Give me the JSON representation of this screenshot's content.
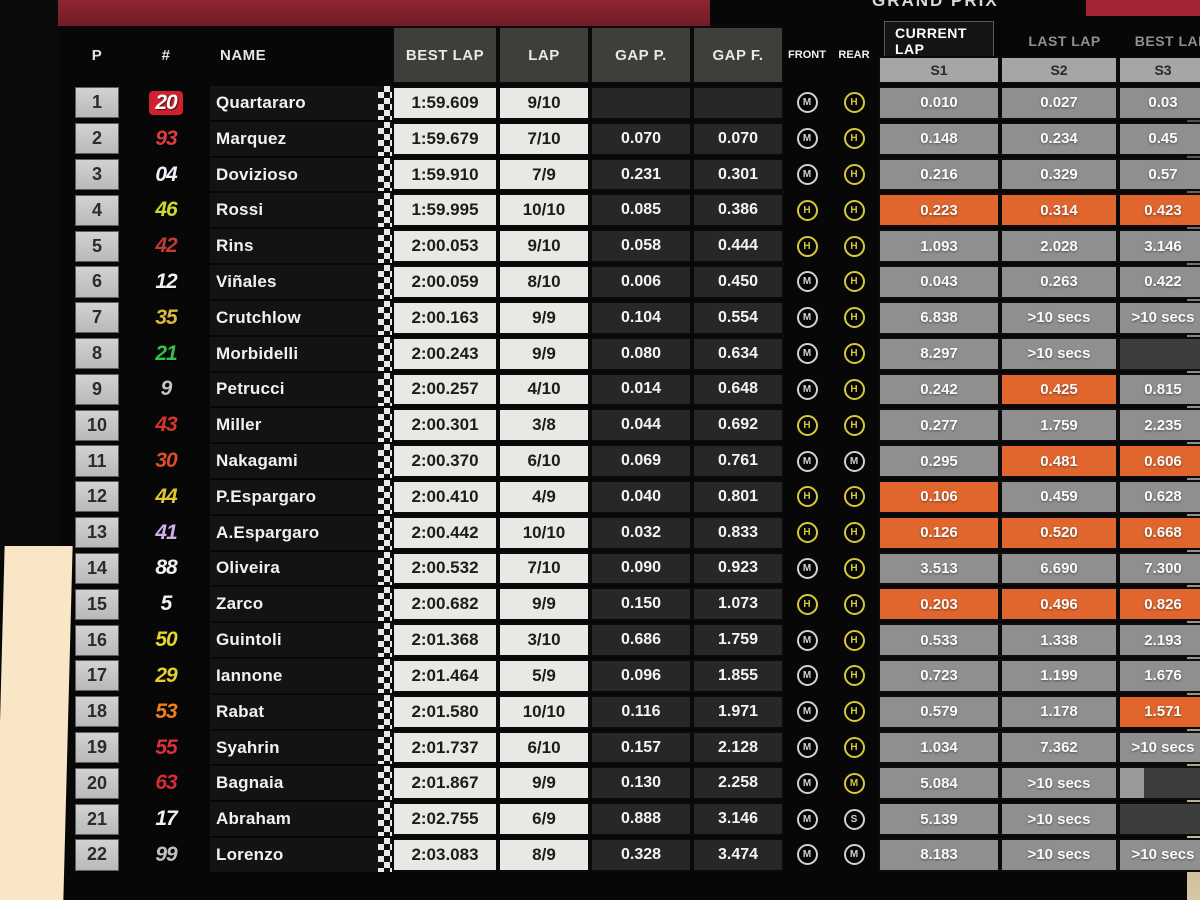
{
  "header": {
    "top_right_text": "GRAND PRIX",
    "columns": {
      "p": "P",
      "num": "#",
      "name": "NAME",
      "best": "BEST LAP",
      "lap": "LAP",
      "gap_p": "GAP P.",
      "gap_f": "GAP F.",
      "front": "FRONT",
      "rear": "REAR"
    },
    "tabs": {
      "current": "CURRENT LAP",
      "last": "LAST LAP",
      "best": "BEST LAP"
    },
    "sectors": [
      "S1",
      "S2",
      "S3"
    ]
  },
  "colors": {
    "orange_highlight": "#e0662e",
    "maroon_banner": "#8e2532",
    "tire_silver": "#cfd2d6",
    "tire_yellow": "#d9c93a"
  },
  "rows": [
    {
      "p": 1,
      "num": "20",
      "num_color": "#ffffff",
      "num_bg": "#d1212e",
      "name": "Quartararo",
      "best": "1:59.609",
      "lap": "9/10",
      "gap_p": "",
      "gap_f": "",
      "front": {
        "c": "M",
        "ring": "silver"
      },
      "rear": {
        "c": "H",
        "ring": "yellow"
      },
      "s1": {
        "v": "0.010",
        "t": "grey"
      },
      "s2": {
        "v": "0.027",
        "t": "grey"
      },
      "s3": {
        "v": "0.03",
        "t": "grey"
      }
    },
    {
      "p": 2,
      "num": "93",
      "num_color": "#e03a3a",
      "name": "Marquez",
      "best": "1:59.679",
      "lap": "7/10",
      "gap_p": "0.070",
      "gap_f": "0.070",
      "front": {
        "c": "M",
        "ring": "silver"
      },
      "rear": {
        "c": "H",
        "ring": "yellow"
      },
      "s1": {
        "v": "0.148",
        "t": "grey"
      },
      "s2": {
        "v": "0.234",
        "t": "grey"
      },
      "s3": {
        "v": "0.45",
        "t": "grey"
      }
    },
    {
      "p": 3,
      "num": "04",
      "num_color": "#eef0fa",
      "name": "Dovizioso",
      "best": "1:59.910",
      "lap": "7/9",
      "gap_p": "0.231",
      "gap_f": "0.301",
      "front": {
        "c": "M",
        "ring": "silver"
      },
      "rear": {
        "c": "H",
        "ring": "yellow"
      },
      "s1": {
        "v": "0.216",
        "t": "grey"
      },
      "s2": {
        "v": "0.329",
        "t": "grey"
      },
      "s3": {
        "v": "0.57",
        "t": "grey"
      }
    },
    {
      "p": 4,
      "num": "46",
      "num_color": "#c9dc2e",
      "name": "Rossi",
      "best": "1:59.995",
      "lap": "10/10",
      "gap_p": "0.085",
      "gap_f": "0.386",
      "front": {
        "c": "H",
        "ring": "yellow"
      },
      "rear": {
        "c": "H",
        "ring": "yellow"
      },
      "s1": {
        "v": "0.223",
        "t": "orange"
      },
      "s2": {
        "v": "0.314",
        "t": "orange"
      },
      "s3": {
        "v": "0.423",
        "t": "orange"
      }
    },
    {
      "p": 5,
      "num": "42",
      "num_color": "#bf3c34",
      "name": "Rins",
      "best": "2:00.053",
      "lap": "9/10",
      "gap_p": "0.058",
      "gap_f": "0.444",
      "front": {
        "c": "H",
        "ring": "yellow"
      },
      "rear": {
        "c": "H",
        "ring": "yellow"
      },
      "s1": {
        "v": "1.093",
        "t": "grey"
      },
      "s2": {
        "v": "2.028",
        "t": "grey"
      },
      "s3": {
        "v": "3.146",
        "t": "grey"
      }
    },
    {
      "p": 6,
      "num": "12",
      "num_color": "#f2f2f2",
      "name": "Viñales",
      "best": "2:00.059",
      "lap": "8/10",
      "gap_p": "0.006",
      "gap_f": "0.450",
      "front": {
        "c": "M",
        "ring": "silver"
      },
      "rear": {
        "c": "H",
        "ring": "yellow"
      },
      "s1": {
        "v": "0.043",
        "t": "grey"
      },
      "s2": {
        "v": "0.263",
        "t": "grey"
      },
      "s3": {
        "v": "0.422",
        "t": "grey"
      }
    },
    {
      "p": 7,
      "num": "35",
      "num_color": "#dcb93a",
      "name": "Crutchlow",
      "best": "2:00.163",
      "lap": "9/9",
      "gap_p": "0.104",
      "gap_f": "0.554",
      "front": {
        "c": "M",
        "ring": "silver"
      },
      "rear": {
        "c": "H",
        "ring": "yellow"
      },
      "s1": {
        "v": "6.838",
        "t": "grey"
      },
      "s2": {
        "v": ">10 secs",
        "t": "grey"
      },
      "s3": {
        "v": ">10 secs",
        "t": "grey"
      }
    },
    {
      "p": 8,
      "num": "21",
      "num_color": "#38c04a",
      "name": "Morbidelli",
      "best": "2:00.243",
      "lap": "9/9",
      "gap_p": "0.080",
      "gap_f": "0.634",
      "front": {
        "c": "M",
        "ring": "silver"
      },
      "rear": {
        "c": "H",
        "ring": "yellow"
      },
      "s1": {
        "v": "8.297",
        "t": "grey"
      },
      "s2": {
        "v": ">10 secs",
        "t": "grey"
      },
      "s3": {
        "v": "",
        "t": "blank"
      }
    },
    {
      "p": 9,
      "num": "9",
      "num_color": "#c3c3ca",
      "name": "Petrucci",
      "best": "2:00.257",
      "lap": "4/10",
      "gap_p": "0.014",
      "gap_f": "0.648",
      "front": {
        "c": "M",
        "ring": "silver"
      },
      "rear": {
        "c": "H",
        "ring": "yellow"
      },
      "s1": {
        "v": "0.242",
        "t": "grey"
      },
      "s2": {
        "v": "0.425",
        "t": "orange"
      },
      "s3": {
        "v": "0.815",
        "t": "grey"
      }
    },
    {
      "p": 10,
      "num": "43",
      "num_color": "#d8352a",
      "name": "Miller",
      "best": "2:00.301",
      "lap": "3/8",
      "gap_p": "0.044",
      "gap_f": "0.692",
      "front": {
        "c": "H",
        "ring": "yellow"
      },
      "rear": {
        "c": "H",
        "ring": "yellow"
      },
      "s1": {
        "v": "0.277",
        "t": "grey"
      },
      "s2": {
        "v": "1.759",
        "t": "grey"
      },
      "s3": {
        "v": "2.235",
        "t": "grey"
      }
    },
    {
      "p": 11,
      "num": "30",
      "num_color": "#e04b2a",
      "name": "Nakagami",
      "best": "2:00.370",
      "lap": "6/10",
      "gap_p": "0.069",
      "gap_f": "0.761",
      "front": {
        "c": "M",
        "ring": "silver"
      },
      "rear": {
        "c": "M",
        "ring": "silver"
      },
      "s1": {
        "v": "0.295",
        "t": "grey"
      },
      "s2": {
        "v": "0.481",
        "t": "orange"
      },
      "s3": {
        "v": "0.606",
        "t": "orange"
      }
    },
    {
      "p": 12,
      "num": "44",
      "num_color": "#e2c62f",
      "name": "P.Espargaro",
      "best": "2:00.410",
      "lap": "4/9",
      "gap_p": "0.040",
      "gap_f": "0.801",
      "front": {
        "c": "H",
        "ring": "yellow"
      },
      "rear": {
        "c": "H",
        "ring": "yellow"
      },
      "s1": {
        "v": "0.106",
        "t": "orange"
      },
      "s2": {
        "v": "0.459",
        "t": "grey"
      },
      "s3": {
        "v": "0.628",
        "t": "grey"
      }
    },
    {
      "p": 13,
      "num": "41",
      "num_color": "#cfb0ec",
      "name": "A.Espargaro",
      "best": "2:00.442",
      "lap": "10/10",
      "gap_p": "0.032",
      "gap_f": "0.833",
      "front": {
        "c": "H",
        "ring": "yellow"
      },
      "rear": {
        "c": "H",
        "ring": "yellow"
      },
      "s1": {
        "v": "0.126",
        "t": "orange"
      },
      "s2": {
        "v": "0.520",
        "t": "orange"
      },
      "s3": {
        "v": "0.668",
        "t": "orange"
      }
    },
    {
      "p": 14,
      "num": "88",
      "num_color": "#f1f1f1",
      "name": "Oliveira",
      "best": "2:00.532",
      "lap": "7/10",
      "gap_p": "0.090",
      "gap_f": "0.923",
      "front": {
        "c": "M",
        "ring": "silver"
      },
      "rear": {
        "c": "H",
        "ring": "yellow"
      },
      "s1": {
        "v": "3.513",
        "t": "grey"
      },
      "s2": {
        "v": "6.690",
        "t": "grey"
      },
      "s3": {
        "v": "7.300",
        "t": "grey"
      }
    },
    {
      "p": 15,
      "num": "5",
      "num_color": "#f3f3f3",
      "name": "Zarco",
      "best": "2:00.682",
      "lap": "9/9",
      "gap_p": "0.150",
      "gap_f": "1.073",
      "front": {
        "c": "H",
        "ring": "yellow"
      },
      "rear": {
        "c": "H",
        "ring": "yellow"
      },
      "s1": {
        "v": "0.203",
        "t": "orange"
      },
      "s2": {
        "v": "0.496",
        "t": "orange"
      },
      "s3": {
        "v": "0.826",
        "t": "orange"
      }
    },
    {
      "p": 16,
      "num": "50",
      "num_color": "#e6d42f",
      "name": "Guintoli",
      "best": "2:01.368",
      "lap": "3/10",
      "gap_p": "0.686",
      "gap_f": "1.759",
      "front": {
        "c": "M",
        "ring": "silver"
      },
      "rear": {
        "c": "H",
        "ring": "yellow"
      },
      "s1": {
        "v": "0.533",
        "t": "grey"
      },
      "s2": {
        "v": "1.338",
        "t": "grey"
      },
      "s3": {
        "v": "2.193",
        "t": "grey"
      }
    },
    {
      "p": 17,
      "num": "29",
      "num_color": "#e3ce2f",
      "name": "Iannone",
      "best": "2:01.464",
      "lap": "5/9",
      "gap_p": "0.096",
      "gap_f": "1.855",
      "front": {
        "c": "M",
        "ring": "silver"
      },
      "rear": {
        "c": "H",
        "ring": "yellow"
      },
      "s1": {
        "v": "0.723",
        "t": "grey"
      },
      "s2": {
        "v": "1.199",
        "t": "grey"
      },
      "s3": {
        "v": "1.676",
        "t": "grey"
      }
    },
    {
      "p": 18,
      "num": "53",
      "num_color": "#ef7e1d",
      "name": "Rabat",
      "best": "2:01.580",
      "lap": "10/10",
      "gap_p": "0.116",
      "gap_f": "1.971",
      "front": {
        "c": "M",
        "ring": "silver"
      },
      "rear": {
        "c": "H",
        "ring": "yellow"
      },
      "s1": {
        "v": "0.579",
        "t": "grey"
      },
      "s2": {
        "v": "1.178",
        "t": "grey"
      },
      "s3": {
        "v": "1.571",
        "t": "orange"
      }
    },
    {
      "p": 19,
      "num": "55",
      "num_color": "#d8333d",
      "name": "Syahrin",
      "best": "2:01.737",
      "lap": "6/10",
      "gap_p": "0.157",
      "gap_f": "2.128",
      "front": {
        "c": "M",
        "ring": "silver"
      },
      "rear": {
        "c": "H",
        "ring": "yellow"
      },
      "s1": {
        "v": "1.034",
        "t": "grey"
      },
      "s2": {
        "v": "7.362",
        "t": "grey"
      },
      "s3": {
        "v": ">10 secs",
        "t": "grey"
      }
    },
    {
      "p": 20,
      "num": "63",
      "num_color": "#d62b35",
      "name": "Bagnaia",
      "best": "2:01.867",
      "lap": "9/9",
      "gap_p": "0.130",
      "gap_f": "2.258",
      "front": {
        "c": "M",
        "ring": "silver"
      },
      "rear": {
        "c": "M",
        "ring": "yellow"
      },
      "s1": {
        "v": "5.084",
        "t": "grey"
      },
      "s2": {
        "v": ">10 secs",
        "t": "grey"
      },
      "s3": {
        "v": "",
        "t": "partial"
      }
    },
    {
      "p": 21,
      "num": "17",
      "num_color": "#f2f2f2",
      "name": "Abraham",
      "best": "2:02.755",
      "lap": "6/9",
      "gap_p": "0.888",
      "gap_f": "3.146",
      "front": {
        "c": "M",
        "ring": "silver"
      },
      "rear": {
        "c": "S",
        "ring": "silver"
      },
      "s1": {
        "v": "5.139",
        "t": "grey"
      },
      "s2": {
        "v": ">10 secs",
        "t": "grey"
      },
      "s3": {
        "v": "",
        "t": "blank"
      }
    },
    {
      "p": 22,
      "num": "99",
      "num_color": "#bfbfc4",
      "name": "Lorenzo",
      "best": "2:03.083",
      "lap": "8/9",
      "gap_p": "0.328",
      "gap_f": "3.474",
      "front": {
        "c": "M",
        "ring": "silver"
      },
      "rear": {
        "c": "M",
        "ring": "silver"
      },
      "s1": {
        "v": "8.183",
        "t": "grey"
      },
      "s2": {
        "v": ">10 secs",
        "t": "grey"
      },
      "s3": {
        "v": ">10 secs",
        "t": "grey"
      }
    }
  ]
}
